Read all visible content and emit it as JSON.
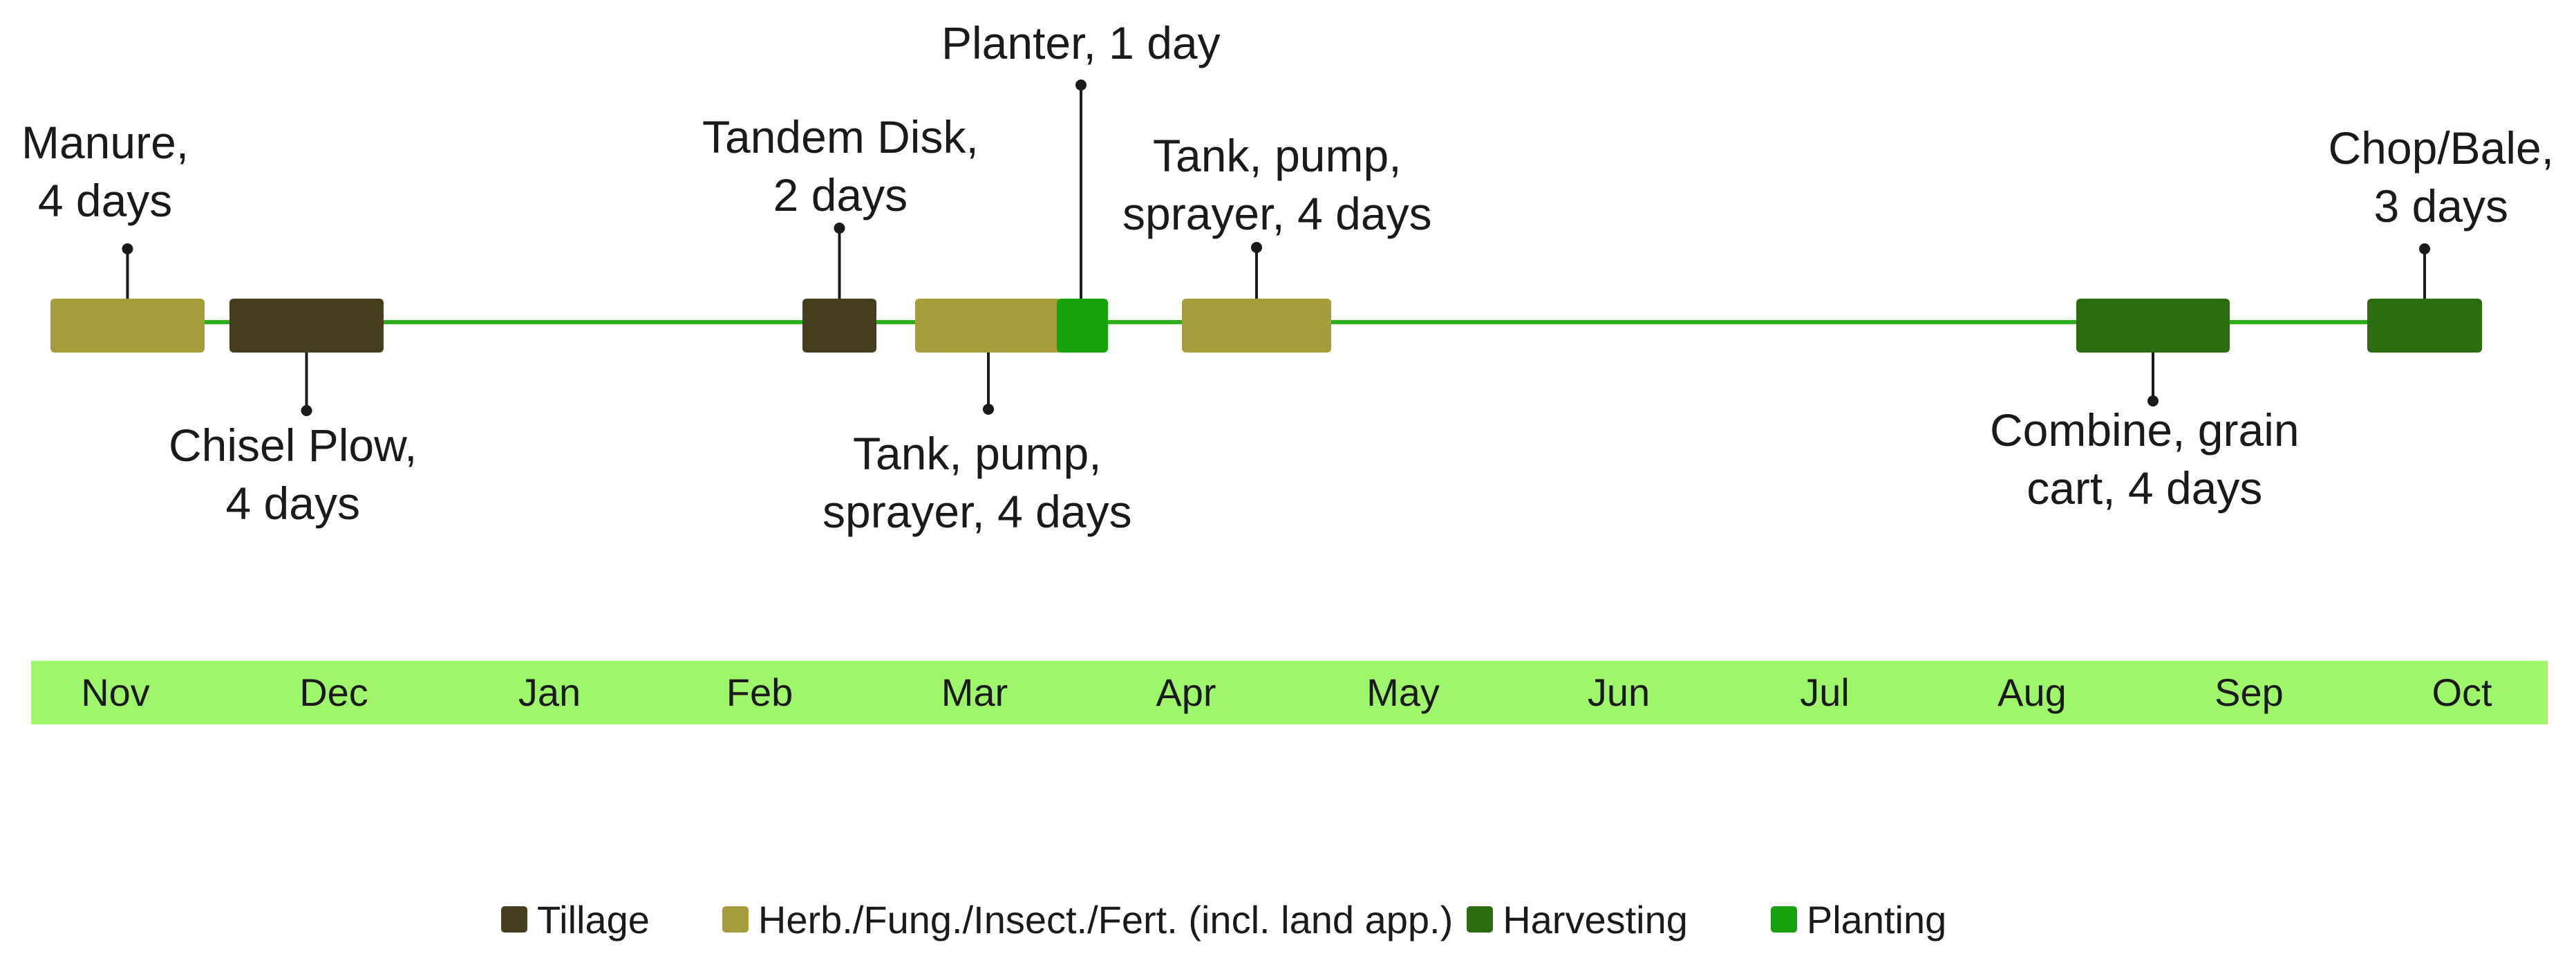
{
  "colors": {
    "Tillage": "#463d1f",
    "Herb./Fung./Insect./Fert. (incl. land app.)": "#a69e3c",
    "Harvesting": "#2a6c0e",
    "Planting": "#16a10d",
    "timeline_line": "#2cb01a",
    "month_band": "#9ef76a"
  },
  "months": [
    "Nov",
    "Dec",
    "Jan",
    "Feb",
    "Mar",
    "Apr",
    "May",
    "Jun",
    "Jul",
    "Aug",
    "Sep",
    "Oct"
  ],
  "events": [
    {
      "id": "manure",
      "category": "Herb./Fung./Insect./Fert. (incl. land app.)",
      "label": "Manure,\n4 days"
    },
    {
      "id": "chisel-plow",
      "category": "Tillage",
      "label": "Chisel Plow,\n4 days"
    },
    {
      "id": "tandem-disk",
      "category": "Tillage",
      "label": "Tandem Disk,\n2 days"
    },
    {
      "id": "tank-pump-sprayer-1",
      "category": "Herb./Fung./Insect./Fert. (incl. land app.)",
      "label": "Tank, pump,\nsprayer, 4 days"
    },
    {
      "id": "planter",
      "category": "Planting",
      "label": "Planter, 1 day"
    },
    {
      "id": "tank-pump-sprayer-2",
      "category": "Herb./Fung./Insect./Fert. (incl. land app.)",
      "label": "Tank, pump,\nsprayer, 4 days"
    },
    {
      "id": "combine-grain-cart",
      "category": "Harvesting",
      "label": "Combine, grain\ncart, 4 days"
    },
    {
      "id": "chop-bale",
      "category": "Harvesting",
      "label": "Chop/Bale,\n3 days"
    }
  ],
  "legend": [
    {
      "label": "Tillage"
    },
    {
      "label": "Herb./Fung./Insect./Fert. (incl. land app.)"
    },
    {
      "label": "Harvesting"
    },
    {
      "label": "Planting"
    }
  ]
}
